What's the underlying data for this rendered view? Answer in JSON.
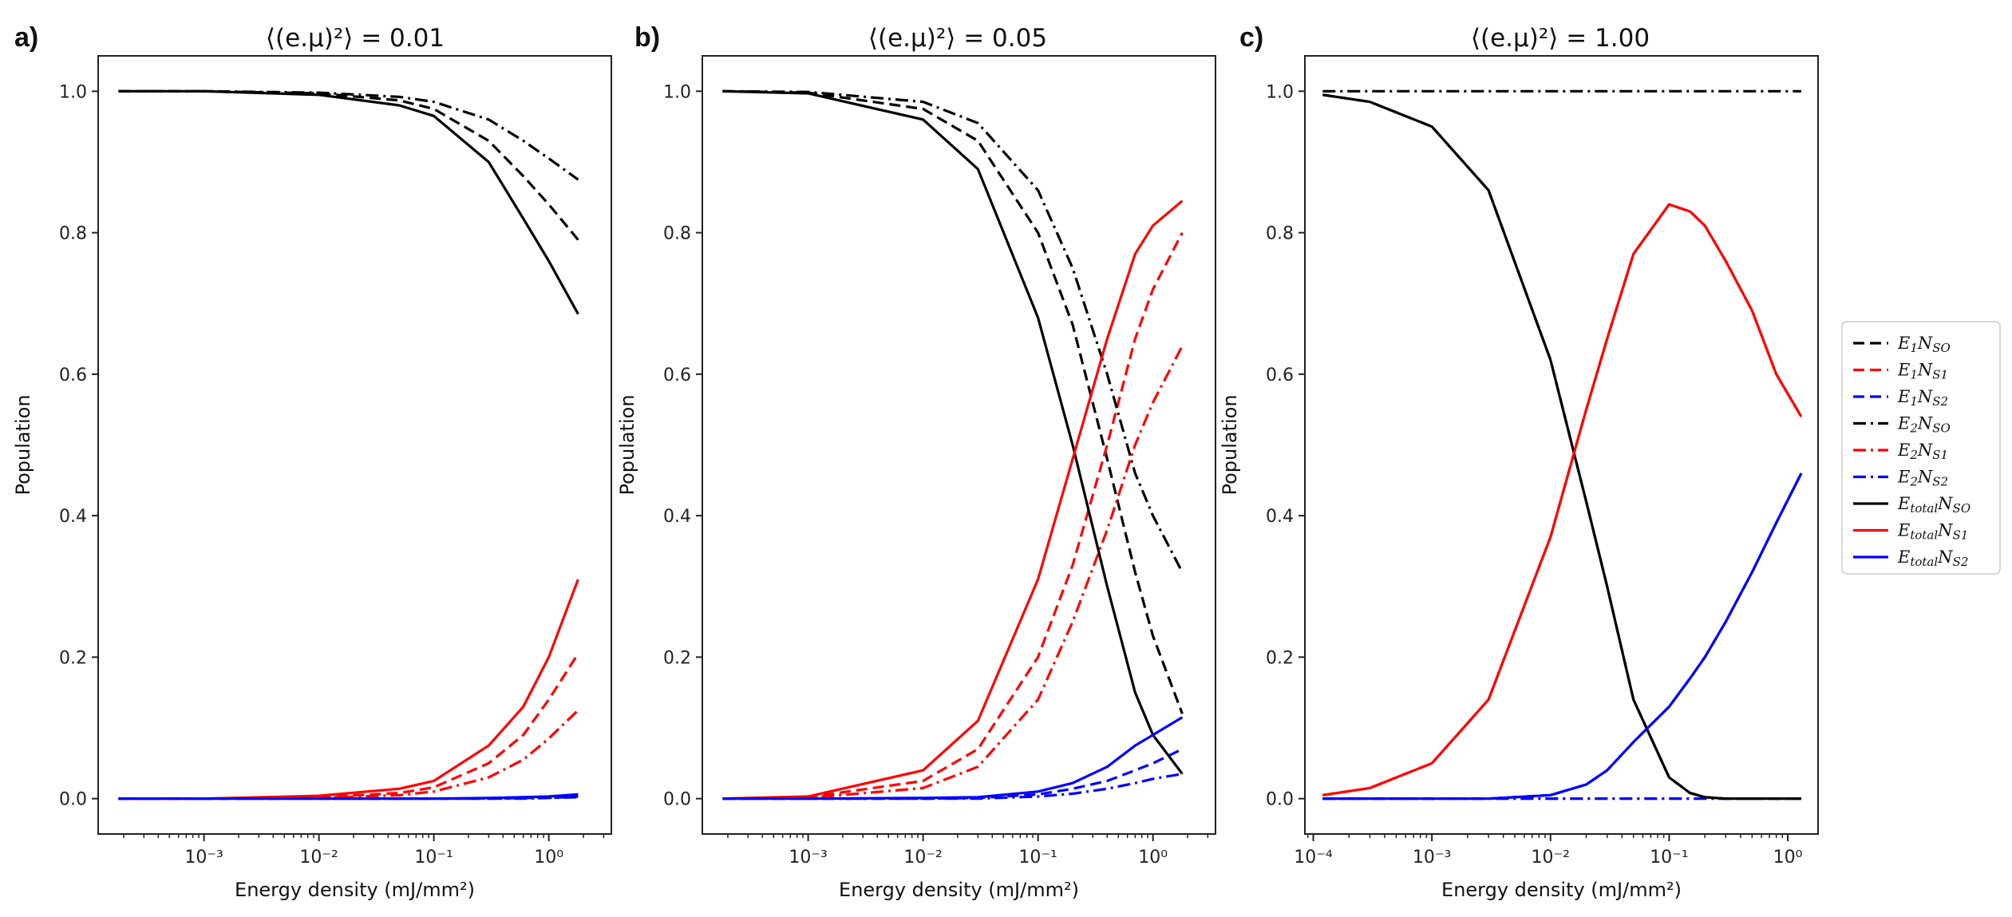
{
  "colors": {
    "black": "#000000",
    "red": "#ff0000",
    "blue": "#0000ff",
    "frame": "#222222"
  },
  "chart_data": [
    {
      "type": "line",
      "panel_label": "a)",
      "title_left": "⟨(e.μ)²⟩ =",
      "title_value": "0.01",
      "xlabel": "Energy density (mJ/mm²)",
      "ylabel": "Population",
      "xscale": "log",
      "xlim": [
        0.00012,
        3.5
      ],
      "ylim": [
        -0.05,
        1.05
      ],
      "yticks": [
        "0.0",
        "0.2",
        "0.4",
        "0.6",
        "0.8",
        "1.0"
      ],
      "xticks": [
        {
          "value": 0.001,
          "label": "10⁻³"
        },
        {
          "value": 0.01,
          "label": "10⁻²"
        },
        {
          "value": 0.1,
          "label": "10⁻¹"
        },
        {
          "value": 1,
          "label": "10⁰"
        }
      ],
      "x": [
        0.00018,
        0.001,
        0.01,
        0.05,
        0.1,
        0.3,
        0.6,
        1.0,
        1.8
      ],
      "series": [
        {
          "name": "E1 N_SO",
          "style": "dashed",
          "color": "black",
          "values": [
            1.0,
            1.0,
            0.997,
            0.987,
            0.975,
            0.93,
            0.88,
            0.84,
            0.79
          ]
        },
        {
          "name": "E1 N_S1",
          "style": "dashed",
          "color": "red",
          "values": [
            0.0,
            0.0,
            0.002,
            0.008,
            0.016,
            0.05,
            0.09,
            0.14,
            0.205
          ]
        },
        {
          "name": "E1 N_S2",
          "style": "dashed",
          "color": "blue",
          "values": [
            0.0,
            0.0,
            0.0,
            0.0,
            0.0,
            0.0,
            0.001,
            0.001,
            0.003
          ]
        },
        {
          "name": "E2 N_SO",
          "style": "dashdot",
          "color": "black",
          "values": [
            1.0,
            1.0,
            0.998,
            0.992,
            0.985,
            0.96,
            0.93,
            0.905,
            0.875
          ]
        },
        {
          "name": "E2 N_S1",
          "style": "dashdot",
          "color": "red",
          "values": [
            0.0,
            0.0,
            0.001,
            0.005,
            0.01,
            0.03,
            0.055,
            0.085,
            0.125
          ]
        },
        {
          "name": "E2 N_S2",
          "style": "dashdot",
          "color": "blue",
          "values": [
            0.0,
            0.0,
            0.0,
            0.0,
            0.0,
            0.0,
            0.0,
            0.001,
            0.002
          ]
        },
        {
          "name": "Etotal N_SO",
          "style": "solid",
          "color": "black",
          "values": [
            1.0,
            1.0,
            0.995,
            0.98,
            0.965,
            0.9,
            0.82,
            0.76,
            0.685
          ]
        },
        {
          "name": "Etotal N_S1",
          "style": "solid",
          "color": "red",
          "values": [
            0.0,
            0.0,
            0.004,
            0.014,
            0.025,
            0.075,
            0.13,
            0.2,
            0.31
          ]
        },
        {
          "name": "Etotal N_S2",
          "style": "solid",
          "color": "blue",
          "values": [
            0.0,
            0.0,
            0.0,
            0.0,
            0.0,
            0.001,
            0.002,
            0.003,
            0.006
          ]
        }
      ]
    },
    {
      "type": "line",
      "panel_label": "b)",
      "title_left": "⟨(e.μ)²⟩ =",
      "title_value": "0.05",
      "xlabel": "Energy density (mJ/mm²)",
      "ylabel": "Population",
      "xscale": "log",
      "xlim": [
        0.00012,
        3.5
      ],
      "ylim": [
        -0.05,
        1.05
      ],
      "yticks": [
        "0.0",
        "0.2",
        "0.4",
        "0.6",
        "0.8",
        "1.0"
      ],
      "xticks": [
        {
          "value": 0.001,
          "label": "10⁻³"
        },
        {
          "value": 0.01,
          "label": "10⁻²"
        },
        {
          "value": 0.1,
          "label": "10⁻¹"
        },
        {
          "value": 1,
          "label": "10⁰"
        }
      ],
      "x": [
        0.00018,
        0.001,
        0.01,
        0.03,
        0.1,
        0.2,
        0.4,
        0.7,
        1.0,
        1.8
      ],
      "series": [
        {
          "name": "E1 N_SO",
          "style": "dashed",
          "color": "black",
          "values": [
            1.0,
            0.998,
            0.975,
            0.93,
            0.8,
            0.67,
            0.48,
            0.32,
            0.23,
            0.12
          ]
        },
        {
          "name": "E1 N_S1",
          "style": "dashed",
          "color": "red",
          "values": [
            0.0,
            0.002,
            0.025,
            0.07,
            0.2,
            0.33,
            0.5,
            0.65,
            0.72,
            0.8
          ]
        },
        {
          "name": "E1 N_S2",
          "style": "dashed",
          "color": "blue",
          "values": [
            0.0,
            0.0,
            0.0,
            0.001,
            0.006,
            0.014,
            0.025,
            0.04,
            0.05,
            0.07
          ]
        },
        {
          "name": "E2 N_SO",
          "style": "dashdot",
          "color": "black",
          "values": [
            1.0,
            0.999,
            0.985,
            0.955,
            0.86,
            0.75,
            0.6,
            0.46,
            0.4,
            0.32
          ]
        },
        {
          "name": "E2 N_S1",
          "style": "dashdot",
          "color": "red",
          "values": [
            0.0,
            0.001,
            0.015,
            0.045,
            0.14,
            0.25,
            0.38,
            0.5,
            0.56,
            0.64
          ]
        },
        {
          "name": "E2 N_S2",
          "style": "dashdot",
          "color": "blue",
          "values": [
            0.0,
            0.0,
            0.0,
            0.0,
            0.003,
            0.007,
            0.014,
            0.022,
            0.028,
            0.035
          ]
        },
        {
          "name": "Etotal N_SO",
          "style": "solid",
          "color": "black",
          "values": [
            1.0,
            0.997,
            0.96,
            0.89,
            0.68,
            0.5,
            0.3,
            0.15,
            0.09,
            0.035
          ]
        },
        {
          "name": "Etotal N_S1",
          "style": "solid",
          "color": "red",
          "values": [
            0.0,
            0.003,
            0.04,
            0.11,
            0.31,
            0.48,
            0.65,
            0.77,
            0.81,
            0.845
          ]
        },
        {
          "name": "Etotal N_S2",
          "style": "solid",
          "color": "blue",
          "values": [
            0.0,
            0.0,
            0.001,
            0.002,
            0.01,
            0.022,
            0.045,
            0.075,
            0.09,
            0.115
          ]
        }
      ]
    },
    {
      "type": "line",
      "panel_label": "c)",
      "title_left": "⟨(e.μ)²⟩ =",
      "title_value": "1.00",
      "xlabel": "Energy density (mJ/mm²)",
      "ylabel": "Population",
      "xscale": "log",
      "xlim": [
        8.5e-05,
        1.8
      ],
      "ylim": [
        -0.05,
        1.05
      ],
      "yticks": [
        "0.0",
        "0.2",
        "0.4",
        "0.6",
        "0.8",
        "1.0"
      ],
      "xticks": [
        {
          "value": 0.0001,
          "label": "10⁻⁴"
        },
        {
          "value": 0.001,
          "label": "10⁻³"
        },
        {
          "value": 0.01,
          "label": "10⁻²"
        },
        {
          "value": 0.1,
          "label": "10⁻¹"
        },
        {
          "value": 1,
          "label": "10⁰"
        }
      ],
      "x": [
        0.00012,
        0.0003,
        0.001,
        0.003,
        0.01,
        0.02,
        0.03,
        0.05,
        0.1,
        0.15,
        0.2,
        0.3,
        0.5,
        0.8,
        1.3
      ],
      "series": [
        {
          "name": "E1 N_SO",
          "style": "dashed",
          "color": "black",
          "values": [
            0.995,
            0.985,
            0.95,
            0.86,
            0.62,
            0.42,
            0.3,
            0.14,
            0.03,
            0.008,
            0.002,
            0.0,
            0.0,
            0.0,
            0.0
          ]
        },
        {
          "name": "E1 N_S1",
          "style": "dashed",
          "color": "red",
          "values": [
            0.005,
            0.015,
            0.05,
            0.14,
            0.37,
            0.55,
            0.65,
            0.77,
            0.84,
            0.83,
            0.81,
            0.76,
            0.69,
            0.6,
            0.54
          ]
        },
        {
          "name": "E1 N_S2",
          "style": "dashed",
          "color": "blue",
          "values": [
            0.0,
            0.0,
            0.0,
            0.0,
            0.005,
            0.02,
            0.04,
            0.08,
            0.13,
            0.17,
            0.2,
            0.25,
            0.32,
            0.39,
            0.46
          ]
        },
        {
          "name": "E2 N_SO",
          "style": "dashdot",
          "color": "black",
          "values": [
            1.0,
            1.0,
            1.0,
            1.0,
            1.0,
            1.0,
            1.0,
            1.0,
            1.0,
            1.0,
            1.0,
            1.0,
            1.0,
            1.0,
            1.0
          ]
        },
        {
          "name": "E2 N_S1",
          "style": "dashdot",
          "color": "red",
          "values": [
            0.0,
            0.0,
            0.0,
            0.0,
            0.0,
            0.0,
            0.0,
            0.0,
            0.0,
            0.0,
            0.0,
            0.0,
            0.0,
            0.0,
            0.0
          ]
        },
        {
          "name": "E2 N_S2",
          "style": "dashdot",
          "color": "blue",
          "values": [
            0.0,
            0.0,
            0.0,
            0.0,
            0.0,
            0.0,
            0.0,
            0.0,
            0.0,
            0.0,
            0.0,
            0.0,
            0.0,
            0.0,
            0.0
          ]
        },
        {
          "name": "Etotal N_SO",
          "style": "solid",
          "color": "black",
          "values": [
            0.995,
            0.985,
            0.95,
            0.86,
            0.62,
            0.42,
            0.3,
            0.14,
            0.03,
            0.008,
            0.002,
            0.0,
            0.0,
            0.0,
            0.0
          ]
        },
        {
          "name": "Etotal N_S1",
          "style": "solid",
          "color": "red",
          "values": [
            0.005,
            0.015,
            0.05,
            0.14,
            0.37,
            0.55,
            0.65,
            0.77,
            0.84,
            0.83,
            0.81,
            0.76,
            0.69,
            0.6,
            0.54
          ]
        },
        {
          "name": "Etotal N_S2",
          "style": "solid",
          "color": "blue",
          "values": [
            0.0,
            0.0,
            0.0,
            0.0,
            0.005,
            0.02,
            0.04,
            0.08,
            0.13,
            0.17,
            0.2,
            0.25,
            0.32,
            0.39,
            0.46
          ]
        }
      ]
    }
  ],
  "legend": {
    "placement": "right",
    "entries": [
      {
        "base": "E",
        "sub1": "1",
        "mid": "N",
        "sub2": "SO",
        "style": "dashed",
        "color": "black"
      },
      {
        "base": "E",
        "sub1": "1",
        "mid": "N",
        "sub2": "S1",
        "style": "dashed",
        "color": "red"
      },
      {
        "base": "E",
        "sub1": "1",
        "mid": "N",
        "sub2": "S2",
        "style": "dashed",
        "color": "blue"
      },
      {
        "base": "E",
        "sub1": "2",
        "mid": "N",
        "sub2": "SO",
        "style": "dashdot",
        "color": "black"
      },
      {
        "base": "E",
        "sub1": "2",
        "mid": "N",
        "sub2": "S1",
        "style": "dashdot",
        "color": "red"
      },
      {
        "base": "E",
        "sub1": "2",
        "mid": "N",
        "sub2": "S2",
        "style": "dashdot",
        "color": "blue"
      },
      {
        "base": "E",
        "sub1": "total",
        "mid": "N",
        "sub2": "SO",
        "style": "solid",
        "color": "black"
      },
      {
        "base": "E",
        "sub1": "total",
        "mid": "N",
        "sub2": "S1",
        "style": "solid",
        "color": "red"
      },
      {
        "base": "E",
        "sub1": "total",
        "mid": "N",
        "sub2": "S2",
        "style": "solid",
        "color": "blue"
      }
    ]
  }
}
